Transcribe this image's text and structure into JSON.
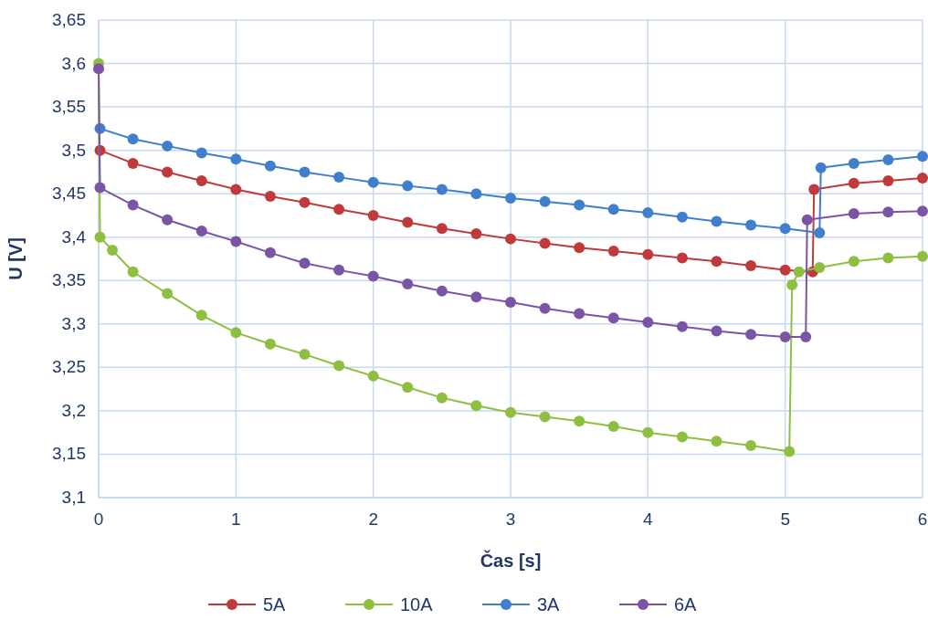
{
  "chart_data": {
    "type": "line",
    "xlabel": "Čas [s]",
    "ylabel": "U [V]",
    "xlim": [
      0,
      6
    ],
    "xticks": [
      0,
      1,
      2,
      3,
      4,
      5,
      6
    ],
    "ylim": [
      3.1,
      3.65
    ],
    "yticks": [
      {
        "value": 3.1,
        "label": "3,1"
      },
      {
        "value": 3.15,
        "label": "3,15"
      },
      {
        "value": 3.2,
        "label": "3,2"
      },
      {
        "value": 3.25,
        "label": "3,25"
      },
      {
        "value": 3.3,
        "label": "3,3"
      },
      {
        "value": 3.35,
        "label": "3,35"
      },
      {
        "value": 3.4,
        "label": "3,4"
      },
      {
        "value": 3.45,
        "label": "3,45"
      },
      {
        "value": 3.5,
        "label": "3,5"
      },
      {
        "value": 3.55,
        "label": "3,55"
      },
      {
        "value": 3.6,
        "label": "3,6"
      },
      {
        "value": 3.65,
        "label": "3,65"
      }
    ],
    "grid": true,
    "legend": "bottom",
    "marker": "circle",
    "line_style": "solid",
    "series": [
      {
        "name": "5A",
        "color": "#c0393b",
        "x": [
          0.01,
          0.25,
          0.5,
          0.75,
          1,
          1.25,
          1.5,
          1.75,
          2,
          2.25,
          2.5,
          2.75,
          3,
          3.25,
          3.5,
          3.75,
          4,
          4.25,
          4.5,
          4.75,
          5,
          5.2,
          5.21,
          5.5,
          5.75,
          6
        ],
        "values": [
          3.5,
          3.485,
          3.475,
          3.465,
          3.455,
          3.447,
          3.44,
          3.432,
          3.425,
          3.417,
          3.41,
          3.404,
          3.398,
          3.393,
          3.388,
          3.384,
          3.38,
          3.376,
          3.372,
          3.367,
          3.362,
          3.36,
          3.455,
          3.462,
          3.465,
          3.468
        ]
      },
      {
        "name": "10A",
        "color": "#8fbf40",
        "x": [
          0,
          0.01,
          0.1,
          0.25,
          0.5,
          0.75,
          1,
          1.25,
          1.5,
          1.75,
          2,
          2.25,
          2.5,
          2.75,
          3,
          3.25,
          3.5,
          3.75,
          4,
          4.25,
          4.5,
          4.75,
          5.03,
          5.05,
          5.1,
          5.25,
          5.5,
          5.75,
          6
        ],
        "values": [
          3.6,
          3.4,
          3.385,
          3.36,
          3.335,
          3.31,
          3.29,
          3.277,
          3.265,
          3.252,
          3.24,
          3.227,
          3.215,
          3.206,
          3.198,
          3.193,
          3.188,
          3.182,
          3.175,
          3.17,
          3.165,
          3.16,
          3.153,
          3.345,
          3.36,
          3.365,
          3.372,
          3.376,
          3.378
        ]
      },
      {
        "name": "3A",
        "color": "#3f7fcb",
        "x": [
          0.01,
          0.25,
          0.5,
          0.75,
          1,
          1.25,
          1.5,
          1.75,
          2,
          2.25,
          2.5,
          2.75,
          3,
          3.25,
          3.5,
          3.75,
          4,
          4.25,
          4.5,
          4.75,
          5,
          5.25,
          5.26,
          5.5,
          5.75,
          6
        ],
        "values": [
          3.525,
          3.513,
          3.505,
          3.497,
          3.49,
          3.482,
          3.475,
          3.469,
          3.463,
          3.459,
          3.455,
          3.45,
          3.445,
          3.441,
          3.437,
          3.432,
          3.428,
          3.423,
          3.418,
          3.414,
          3.41,
          3.405,
          3.48,
          3.485,
          3.489,
          3.493
        ]
      },
      {
        "name": "6A",
        "color": "#7b55a5",
        "x": [
          0,
          0.01,
          0.25,
          0.5,
          0.75,
          1,
          1.25,
          1.5,
          1.75,
          2,
          2.25,
          2.5,
          2.75,
          3,
          3.25,
          3.5,
          3.75,
          4,
          4.25,
          4.5,
          4.75,
          5,
          5.15,
          5.16,
          5.5,
          5.75,
          6
        ],
        "values": [
          3.594,
          3.457,
          3.437,
          3.42,
          3.407,
          3.395,
          3.382,
          3.37,
          3.362,
          3.355,
          3.346,
          3.338,
          3.331,
          3.325,
          3.318,
          3.312,
          3.307,
          3.302,
          3.297,
          3.292,
          3.288,
          3.285,
          3.285,
          3.42,
          3.427,
          3.429,
          3.43
        ]
      }
    ]
  }
}
